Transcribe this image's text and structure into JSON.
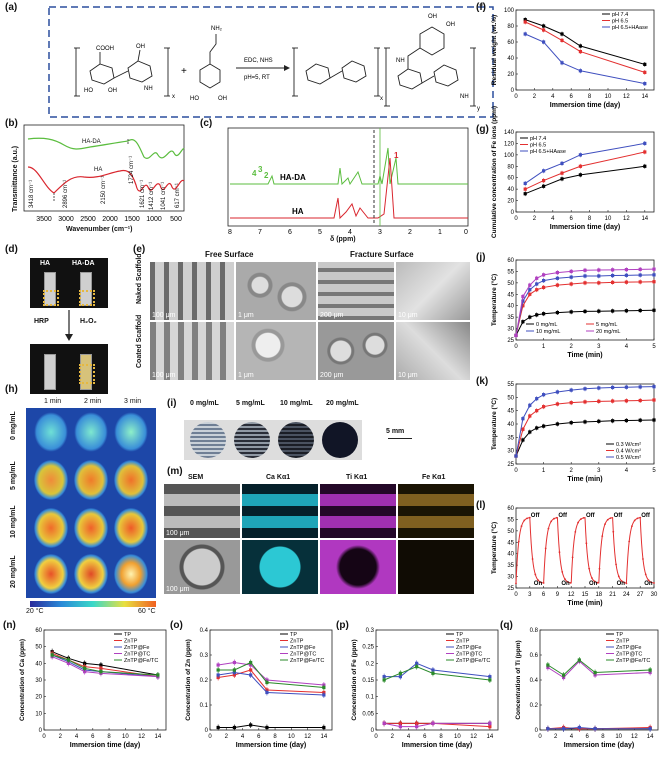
{
  "panels": {
    "a": {
      "label": "(a)",
      "reagents": "EDC, NHS",
      "conditions": "pH=5, RT",
      "sub_x": "x",
      "sub_y": "y"
    },
    "b": {
      "label": "(b)",
      "ylabel": "Transmittance (a.u.)",
      "xlabel": "Wavenumber (cm⁻¹)",
      "curve_hada": "HA-DA",
      "curve_ha": "HA",
      "peaks": [
        "3418 cm⁻¹",
        "2896 cm⁻¹",
        "2150 cm⁻¹",
        "1724 cm⁻¹",
        "1621 cm⁻¹",
        "1412 cm⁻¹",
        "1041 cm⁻¹",
        "617 cm⁻¹"
      ],
      "ticks": [
        "3500",
        "3000",
        "2500",
        "2000",
        "1500",
        "1000",
        "500"
      ]
    },
    "c": {
      "label": "(c)",
      "xlabel": "δ (ppm)",
      "curve_hada": "HA-DA",
      "curve_ha": "HA",
      "nums": [
        "4",
        "3",
        "2",
        "1"
      ],
      "ticks": [
        "8",
        "7",
        "6",
        "5",
        "4",
        "3",
        "2",
        "1",
        "0"
      ]
    },
    "d": {
      "label": "(d)",
      "ha": "HA",
      "hada": "HA-DA",
      "enzyme": "HRP",
      "oxidant": "H₂O₂"
    },
    "e": {
      "label": "(e)",
      "col1": "Free Surface",
      "col2": "Fracture Surface",
      "row1": "Naked Scaffold",
      "row2": "Coated Scaffold",
      "scales": [
        "100 μm",
        "1 μm",
        "200 μm",
        "10 μm",
        "100 μm",
        "1 μm",
        "200 μm",
        "10 μm"
      ]
    },
    "h": {
      "label": "(h)",
      "times": [
        "1 min",
        "2 min",
        "3 min"
      ],
      "rows": [
        "0 mg/mL",
        "5 mg/mL",
        "10 mg/mL",
        "20 mg/mL"
      ],
      "cmin": "20 °C",
      "cmax": "60 °C"
    },
    "i": {
      "label": "(i)",
      "concs": [
        "0 mg/mL",
        "5 mg/mL",
        "10 mg/mL",
        "20 mg/mL"
      ],
      "scale": "5 mm"
    },
    "m": {
      "label": "(m)",
      "cols": [
        "SEM",
        "Ca Kα1",
        "Ti Kα1",
        "Fe Kα1"
      ],
      "scales": [
        "100 μm",
        "100 μm"
      ]
    }
  },
  "chart_data": [
    {
      "id": "f",
      "label": "(f)",
      "type": "line",
      "ylabel": "Residual weight (wt.%)",
      "xlabel": "Immersion time (day)",
      "x": [
        1,
        3,
        5,
        7,
        14
      ],
      "xlim": [
        0,
        15
      ],
      "ylim": [
        0,
        100
      ],
      "xticks": [
        0,
        2,
        4,
        6,
        8,
        10,
        12,
        14
      ],
      "yticks": [
        0,
        20,
        40,
        60,
        80,
        100
      ],
      "legend": "top-right",
      "series": [
        {
          "name": "pH 7.4",
          "color": "#000000",
          "values": [
            88,
            80,
            70,
            55,
            32
          ]
        },
        {
          "name": "pH 6.5",
          "color": "#e33030",
          "values": [
            85,
            75,
            62,
            48,
            22
          ]
        },
        {
          "name": "pH 6.5+HAase",
          "color": "#3f4fbf",
          "values": [
            70,
            60,
            34,
            24,
            8
          ]
        }
      ]
    },
    {
      "id": "g",
      "label": "(g)",
      "type": "line",
      "ylabel": "Cumulative concentration of Fe ions (ppm)",
      "xlabel": "Immersion time (day)",
      "x": [
        1,
        3,
        5,
        7,
        14
      ],
      "xlim": [
        0,
        15
      ],
      "ylim": [
        0,
        140
      ],
      "xticks": [
        0,
        2,
        4,
        6,
        8,
        10,
        12,
        14
      ],
      "yticks": [
        0,
        20,
        40,
        60,
        80,
        100,
        120,
        140
      ],
      "legend": "top-left",
      "series": [
        {
          "name": "pH 7.4",
          "color": "#000000",
          "values": [
            32,
            45,
            58,
            65,
            80
          ]
        },
        {
          "name": "pH 6.5",
          "color": "#e33030",
          "values": [
            40,
            55,
            68,
            80,
            105
          ]
        },
        {
          "name": "pH 6.5+HAase",
          "color": "#3f4fbf",
          "values": [
            50,
            72,
            85,
            100,
            120
          ]
        }
      ]
    },
    {
      "id": "j",
      "label": "(j)",
      "type": "line",
      "ylabel": "Temperature (°C)",
      "xlabel": "Time (min)",
      "x": [
        0,
        0.25,
        0.5,
        0.75,
        1,
        1.5,
        2,
        2.5,
        3,
        3.5,
        4,
        4.5,
        5
      ],
      "xlim": [
        0,
        5
      ],
      "ylim": [
        25,
        60
      ],
      "xticks": [
        0,
        1,
        2,
        3,
        4,
        5
      ],
      "yticks": [
        25,
        30,
        35,
        40,
        45,
        50,
        55,
        60
      ],
      "legend": "bottom",
      "series": [
        {
          "name": "0 mg/mL",
          "color": "#000000",
          "values": [
            27,
            33,
            35,
            36,
            36.5,
            37,
            37.3,
            37.5,
            37.6,
            37.7,
            37.8,
            37.9,
            38
          ]
        },
        {
          "name": "5 mg/mL",
          "color": "#e33030",
          "values": [
            27,
            40,
            45,
            47,
            48,
            49,
            49.5,
            50,
            50,
            50.2,
            50.3,
            50.4,
            50.5
          ]
        },
        {
          "name": "10 mg/mL",
          "color": "#3f4fbf",
          "values": [
            27,
            42,
            47,
            49.5,
            51,
            52,
            52.5,
            53,
            53,
            53.2,
            53.3,
            53.4,
            53.5
          ]
        },
        {
          "name": "20 mg/mL",
          "color": "#b040c0",
          "values": [
            27,
            44,
            49,
            52,
            53.5,
            54.5,
            55,
            55.5,
            55.6,
            55.7,
            55.8,
            55.9,
            56
          ]
        }
      ]
    },
    {
      "id": "k",
      "label": "(k)",
      "type": "line",
      "ylabel": "Temperature (°C)",
      "xlabel": "Time (min)",
      "x": [
        0,
        0.25,
        0.5,
        0.75,
        1,
        1.5,
        2,
        2.5,
        3,
        3.5,
        4,
        4.5,
        5
      ],
      "xlim": [
        0,
        5
      ],
      "ylim": [
        25,
        55
      ],
      "xticks": [
        0,
        1,
        2,
        3,
        4,
        5
      ],
      "yticks": [
        25,
        30,
        35,
        40,
        45,
        50,
        55
      ],
      "legend": "bottom-right",
      "series": [
        {
          "name": "0.3 W/cm²",
          "color": "#000000",
          "values": [
            28,
            34,
            37,
            38.5,
            39.2,
            40,
            40.5,
            40.8,
            41,
            41.2,
            41.3,
            41.4,
            41.5
          ]
        },
        {
          "name": "0.4 W/cm²",
          "color": "#e33030",
          "values": [
            28,
            38,
            43,
            45,
            46.5,
            47.5,
            48,
            48.3,
            48.5,
            48.6,
            48.7,
            48.8,
            49
          ]
        },
        {
          "name": "0.5 W/cm²",
          "color": "#3f4fbf",
          "values": [
            28,
            42,
            47,
            49.5,
            51,
            52,
            52.7,
            53.2,
            53.5,
            53.7,
            53.8,
            53.9,
            54
          ]
        }
      ]
    },
    {
      "id": "l",
      "label": "(l)",
      "type": "line",
      "ylabel": "Temperature (°C)",
      "xlabel": "Time (min)",
      "xlim": [
        0,
        30
      ],
      "ylim": [
        25,
        60
      ],
      "xticks": [
        0,
        3,
        6,
        9,
        12,
        15,
        18,
        21,
        24,
        27,
        30
      ],
      "yticks": [
        25,
        30,
        35,
        40,
        45,
        50,
        55,
        60
      ],
      "annotations": [
        "Off",
        "On"
      ],
      "cycles": 5,
      "period_min": 6,
      "t_low": 27,
      "t_high": 56,
      "series": [
        {
          "name": "cycling",
          "color": "#e33030"
        }
      ]
    },
    {
      "id": "n",
      "label": "(n)",
      "type": "line",
      "ylabel": "Concentration of Ca (ppm)",
      "xlabel": "Immersion time (day)",
      "x": [
        1,
        3,
        5,
        7,
        14
      ],
      "xlim": [
        0,
        15
      ],
      "ylim": [
        0,
        60
      ],
      "xticks": [
        0,
        2,
        4,
        6,
        8,
        10,
        12,
        14
      ],
      "yticks": [
        0,
        10,
        20,
        30,
        40,
        50,
        60
      ],
      "legend": "top-right",
      "series": [
        {
          "name": "TP",
          "color": "#000000",
          "values": [
            47,
            43,
            40,
            39,
            33
          ]
        },
        {
          "name": "ZnTP",
          "color": "#e33030",
          "values": [
            46,
            42,
            38,
            37,
            32
          ]
        },
        {
          "name": "ZnTP@Fe",
          "color": "#3f4fbf",
          "values": [
            45,
            41,
            36,
            35,
            32
          ]
        },
        {
          "name": "ZnTP@TC",
          "color": "#b040c0",
          "values": [
            44,
            40,
            35,
            34,
            32
          ]
        },
        {
          "name": "ZnTP@Fe/TC",
          "color": "#2a8a2a",
          "values": [
            45,
            42,
            37,
            35,
            33
          ]
        }
      ]
    },
    {
      "id": "o",
      "label": "(o)",
      "type": "line",
      "ylabel": "Concentration of Zn (ppm)",
      "xlabel": "Immersion time (day)",
      "x": [
        1,
        3,
        5,
        7,
        14
      ],
      "xlim": [
        0,
        15
      ],
      "ylim": [
        0,
        0.4
      ],
      "xticks": [
        0,
        2,
        4,
        6,
        8,
        10,
        12,
        14
      ],
      "yticks": [
        0,
        0.1,
        0.2,
        0.3,
        0.4
      ],
      "legend": "top-right",
      "series": [
        {
          "name": "TP",
          "color": "#000000",
          "values": [
            0.01,
            0.01,
            0.02,
            0.01,
            0.01
          ]
        },
        {
          "name": "ZnTP",
          "color": "#e33030",
          "values": [
            0.21,
            0.22,
            0.24,
            0.16,
            0.15
          ]
        },
        {
          "name": "ZnTP@Fe",
          "color": "#3f4fbf",
          "values": [
            0.22,
            0.23,
            0.22,
            0.15,
            0.14
          ]
        },
        {
          "name": "ZnTP@TC",
          "color": "#b040c0",
          "values": [
            0.26,
            0.27,
            0.26,
            0.2,
            0.18
          ]
        },
        {
          "name": "ZnTP@Fe/TC",
          "color": "#2a8a2a",
          "values": [
            0.24,
            0.24,
            0.27,
            0.19,
            0.17
          ]
        }
      ]
    },
    {
      "id": "p",
      "label": "(p)",
      "type": "line",
      "ylabel": "Concentration of Fe (ppm)",
      "xlabel": "Immersion time (day)",
      "x": [
        1,
        3,
        5,
        7,
        14
      ],
      "xlim": [
        0,
        15
      ],
      "ylim": [
        0,
        0.3
      ],
      "xticks": [
        0,
        2,
        4,
        6,
        8,
        10,
        12,
        14
      ],
      "yticks": [
        0,
        0.05,
        0.1,
        0.15,
        0.2,
        0.25,
        0.3
      ],
      "legend": "top-right",
      "series": [
        {
          "name": "TP",
          "color": "#000000",
          "values": [
            0.02,
            0.02,
            0.02,
            0.02,
            0.02
          ]
        },
        {
          "name": "ZnTP",
          "color": "#e33030",
          "values": [
            0.02,
            0.02,
            0.02,
            0.02,
            0.01
          ]
        },
        {
          "name": "ZnTP@Fe",
          "color": "#3f4fbf",
          "values": [
            0.16,
            0.16,
            0.2,
            0.18,
            0.16
          ]
        },
        {
          "name": "ZnTP@TC",
          "color": "#b040c0",
          "values": [
            0.02,
            0.01,
            0.01,
            0.02,
            0.02
          ]
        },
        {
          "name": "ZnTP@Fe/TC",
          "color": "#2a8a2a",
          "values": [
            0.15,
            0.17,
            0.19,
            0.17,
            0.15
          ]
        }
      ]
    },
    {
      "id": "q",
      "label": "(q)",
      "type": "line",
      "ylabel": "Concentration of Ti (ppm)",
      "xlabel": "Immersion time (day)",
      "x": [
        1,
        3,
        5,
        7,
        14
      ],
      "xlim": [
        0,
        15
      ],
      "ylim": [
        0,
        0.8
      ],
      "xticks": [
        0,
        2,
        4,
        6,
        8,
        10,
        12,
        14
      ],
      "yticks": [
        0,
        0.2,
        0.4,
        0.6,
        0.8
      ],
      "legend": "top-right",
      "series": [
        {
          "name": "TP",
          "color": "#000000",
          "values": [
            0.01,
            0.01,
            0.01,
            0.01,
            0.01
          ]
        },
        {
          "name": "ZnTP",
          "color": "#e33030",
          "values": [
            0.01,
            0.02,
            0.01,
            0.01,
            0.02
          ]
        },
        {
          "name": "ZnTP@Fe",
          "color": "#3f4fbf",
          "values": [
            0.01,
            0.01,
            0.02,
            0.01,
            0.01
          ]
        },
        {
          "name": "ZnTP@TC",
          "color": "#b040c0",
          "values": [
            0.5,
            0.42,
            0.55,
            0.44,
            0.46
          ]
        },
        {
          "name": "ZnTP@Fe/TC",
          "color": "#2a8a2a",
          "values": [
            0.52,
            0.44,
            0.56,
            0.46,
            0.48
          ]
        }
      ]
    }
  ]
}
